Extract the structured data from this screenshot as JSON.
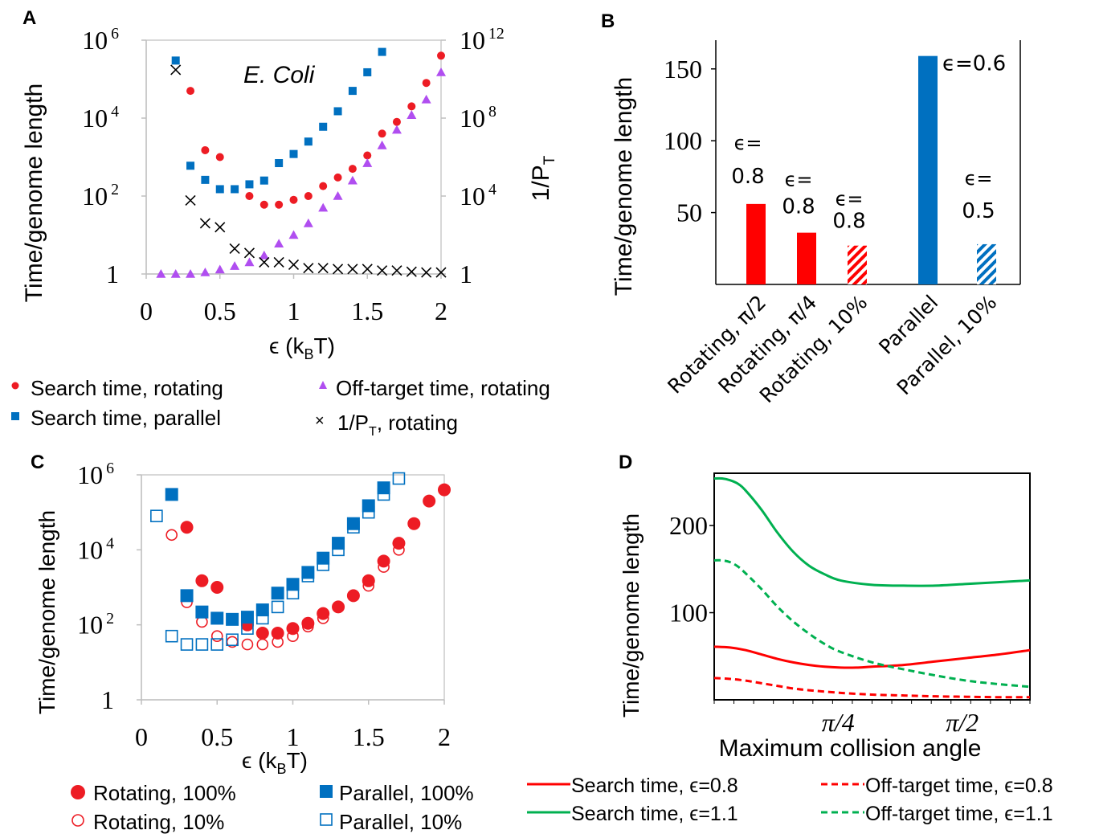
{
  "chart_data": [
    {
      "panel": "A",
      "type": "scatter",
      "annotation": "E. Coli",
      "xlabel": "ϵ (k",
      "xlabel_sub": "B",
      "xlabel_end": "T)",
      "ylabel": "Time/genome length",
      "ylabel_right": "1/P",
      "ylabel_right_sub": "T",
      "xlim": [
        0,
        2
      ],
      "x_ticks": [
        "0",
        "0.5",
        "1",
        "1.5",
        "2"
      ],
      "y_scale": "log",
      "ylim": [
        1,
        1000000
      ],
      "y_ticks": [
        {
          "base": "1",
          "exp": ""
        },
        {
          "base": "10",
          "exp": "2"
        },
        {
          "base": "10",
          "exp": "4"
        },
        {
          "base": "10",
          "exp": "6"
        }
      ],
      "y2_scale": "log",
      "y2lim": [
        1,
        1000000000000
      ],
      "y2_ticks": [
        {
          "base": "1",
          "exp": ""
        },
        {
          "base": "10",
          "exp": "4"
        },
        {
          "base": "10",
          "exp": "8"
        },
        {
          "base": "10",
          "exp": "12"
        }
      ],
      "legend_position": "below",
      "series": [
        {
          "name": "Search time, rotating",
          "marker": "circle",
          "color": "#ed1c24",
          "axis": "left",
          "x": [
            0.3,
            0.4,
            0.5,
            0.7,
            0.8,
            0.9,
            1.0,
            1.1,
            1.2,
            1.3,
            1.4,
            1.5,
            1.6,
            1.7,
            1.8,
            1.9,
            2.0
          ],
          "y": [
            50000,
            1500,
            1000,
            100,
            60,
            60,
            80,
            100,
            180,
            300,
            500,
            1100,
            4000,
            8000,
            20000,
            80000,
            400000
          ]
        },
        {
          "name": "Search time, parallel",
          "marker": "square",
          "color": "#0070c0",
          "axis": "left",
          "x": [
            0.2,
            0.3,
            0.4,
            0.5,
            0.6,
            0.7,
            0.8,
            0.9,
            1.0,
            1.1,
            1.2,
            1.3,
            1.4,
            1.5,
            1.6
          ],
          "y": [
            300000,
            600,
            260,
            150,
            150,
            200,
            250,
            700,
            1200,
            2500,
            6000,
            15000,
            50000,
            150000,
            500000
          ]
        },
        {
          "name": "Off-target time, rotating",
          "marker": "triangle",
          "color": "#b04ef0",
          "axis": "left",
          "x": [
            0.1,
            0.2,
            0.3,
            0.4,
            0.5,
            0.6,
            0.7,
            0.8,
            0.9,
            1.0,
            1.1,
            1.2,
            1.3,
            1.4,
            1.5,
            1.6,
            1.7,
            1.8,
            1.9,
            2.0
          ],
          "y": [
            1,
            1,
            1,
            1.1,
            1.3,
            1.6,
            2,
            3,
            6,
            10,
            20,
            50,
            100,
            250,
            700,
            2000,
            5000,
            12000,
            30000,
            150000
          ]
        },
        {
          "name": "1/P",
          "name_sub": "T",
          "name_end": ", rotating",
          "marker": "x",
          "color": "#000000",
          "axis": "right",
          "x": [
            0.2,
            0.3,
            0.4,
            0.5,
            0.6,
            0.7,
            0.8,
            0.9,
            1.0,
            1.1,
            1.2,
            1.3,
            1.4,
            1.5,
            1.6,
            1.7,
            1.8,
            1.9,
            2.0
          ],
          "y": [
            30000000000,
            6000,
            400,
            250,
            20,
            12,
            4,
            4,
            3,
            2,
            2,
            1.8,
            1.8,
            1.8,
            1.5,
            1.5,
            1.3,
            1.2,
            1.2
          ]
        }
      ]
    },
    {
      "panel": "B",
      "type": "bar",
      "ylabel": "Time/genome length",
      "ylim": [
        0,
        170
      ],
      "y_ticks": [
        "50",
        "100",
        "150"
      ],
      "categories": [
        "Rotating, π/2",
        "Rotating, π/4",
        "Rotating, 10%",
        "Parallel",
        "Parallel, 10%"
      ],
      "values": [
        56,
        36,
        27,
        159,
        28
      ],
      "bar_labels": [
        [
          "ϵ=",
          "0.8"
        ],
        [
          "ϵ=",
          "0.8"
        ],
        [
          "ϵ=",
          "0.8"
        ],
        [
          "ϵ=0.6"
        ],
        [
          "ϵ=",
          "0.5"
        ]
      ],
      "colors": [
        "#ff0000",
        "#ff0000",
        "#ff0000",
        "#0070c0",
        "#0070c0"
      ],
      "hatched": [
        false,
        false,
        true,
        false,
        true
      ]
    },
    {
      "panel": "C",
      "type": "scatter",
      "xlabel": "ϵ (k",
      "xlabel_sub": "B",
      "xlabel_end": "T)",
      "ylabel": "Time/genome length",
      "xlim": [
        0,
        2
      ],
      "x_ticks": [
        "0",
        "0.5",
        "1",
        "1.5",
        "2"
      ],
      "y_scale": "log",
      "ylim": [
        1,
        1000000
      ],
      "y_ticks": [
        {
          "base": "1",
          "exp": ""
        },
        {
          "base": "10",
          "exp": "2"
        },
        {
          "base": "10",
          "exp": "4"
        },
        {
          "base": "10",
          "exp": "6"
        }
      ],
      "legend_position": "below",
      "series": [
        {
          "name": "Rotating, 100%",
          "marker": "circle",
          "filled": true,
          "color": "#ed1c24",
          "x": [
            0.3,
            0.4,
            0.5,
            0.7,
            0.8,
            0.9,
            1.0,
            1.1,
            1.2,
            1.3,
            1.4,
            1.5,
            1.6,
            1.7,
            1.8,
            1.9,
            2.0
          ],
          "y": [
            40000,
            1500,
            1000,
            100,
            60,
            60,
            80,
            110,
            200,
            300,
            600,
            1500,
            5000,
            15000,
            50000,
            200000,
            400000
          ]
        },
        {
          "name": "Rotating, 10%",
          "marker": "circle",
          "filled": false,
          "color": "#ed1c24",
          "x": [
            0.2,
            0.3,
            0.4,
            0.5,
            0.6,
            0.7,
            0.8,
            0.9,
            1.0,
            1.1,
            1.2,
            1.3,
            1.4,
            1.5,
            1.6,
            1.7
          ],
          "y": [
            25000,
            400,
            120,
            50,
            35,
            30,
            30,
            35,
            50,
            90,
            150,
            300,
            600,
            1100,
            3500,
            10000
          ]
        },
        {
          "name": "Parallel, 100%",
          "marker": "square",
          "filled": true,
          "color": "#0070c0",
          "x": [
            0.2,
            0.3,
            0.4,
            0.5,
            0.6,
            0.7,
            0.8,
            0.9,
            1.0,
            1.1,
            1.2,
            1.3,
            1.4,
            1.5,
            1.6
          ],
          "y": [
            300000,
            600,
            220,
            150,
            140,
            160,
            250,
            700,
            1200,
            2500,
            6000,
            15000,
            50000,
            150000,
            450000
          ]
        },
        {
          "name": "Parallel, 10%",
          "marker": "square",
          "filled": false,
          "color": "#0070c0",
          "x": [
            0.1,
            0.2,
            0.3,
            0.4,
            0.5,
            0.6,
            0.7,
            0.8,
            0.9,
            1.0,
            1.1,
            1.2,
            1.3,
            1.4,
            1.5,
            1.6,
            1.7
          ],
          "y": [
            80000,
            50,
            30,
            30,
            30,
            40,
            80,
            150,
            300,
            700,
            2000,
            4000,
            10000,
            40000,
            100000,
            300000,
            800000
          ]
        }
      ]
    },
    {
      "panel": "D",
      "type": "line",
      "xlabel": "Maximum collision angle",
      "ylabel": "Time/genome length",
      "xlim": [
        0,
        2.0
      ],
      "x_ticks": [
        {
          "value": 0.785,
          "label": "π/4"
        },
        {
          "value": 1.571,
          "label": "π/2"
        }
      ],
      "ylim": [
        0,
        260
      ],
      "y_ticks": [
        "100",
        "200"
      ],
      "legend_position": "below",
      "series": [
        {
          "name": "Search time, ϵ=0.8",
          "style": "solid",
          "color": "#ff0000",
          "x": [
            0,
            0.1,
            0.2,
            0.3,
            0.4,
            0.5,
            0.6,
            0.7,
            0.8,
            0.9,
            1.0,
            1.2,
            1.4,
            1.6,
            1.8,
            2.0
          ],
          "y": [
            61,
            60,
            57,
            52,
            47,
            43,
            40,
            38,
            37,
            37,
            38,
            40,
            44,
            48,
            52,
            57
          ]
        },
        {
          "name": "Off-target time, ϵ=0.8",
          "style": "dashed",
          "color": "#ff0000",
          "x": [
            0,
            0.1,
            0.2,
            0.3,
            0.4,
            0.5,
            0.6,
            0.8,
            1.0,
            1.2,
            1.4,
            1.6,
            1.8,
            2.0
          ],
          "y": [
            25,
            24,
            22,
            19,
            16,
            13,
            11,
            8,
            6,
            5,
            4,
            3.5,
            3,
            3
          ]
        },
        {
          "name": "Search time, ϵ=1.1",
          "style": "solid",
          "color": "#00b050",
          "x": [
            0,
            0.05,
            0.1,
            0.15,
            0.2,
            0.3,
            0.4,
            0.5,
            0.6,
            0.7,
            0.8,
            1.0,
            1.2,
            1.4,
            1.6,
            1.8,
            2.0
          ],
          "y": [
            254,
            254,
            252,
            248,
            240,
            218,
            192,
            170,
            154,
            144,
            137,
            132,
            131,
            131,
            133,
            135,
            137
          ]
        },
        {
          "name": "Off-target time, ϵ=1.1",
          "style": "dashed",
          "color": "#00b050",
          "x": [
            0,
            0.05,
            0.1,
            0.15,
            0.2,
            0.3,
            0.4,
            0.5,
            0.6,
            0.7,
            0.8,
            1.0,
            1.2,
            1.4,
            1.6,
            1.8,
            2.0
          ],
          "y": [
            160,
            160,
            158,
            153,
            145,
            127,
            107,
            90,
            76,
            64,
            55,
            43,
            35,
            28,
            22,
            18,
            15
          ]
        }
      ]
    }
  ],
  "panel_letters": {
    "a": "A",
    "b": "B",
    "c": "C",
    "d": "D"
  }
}
